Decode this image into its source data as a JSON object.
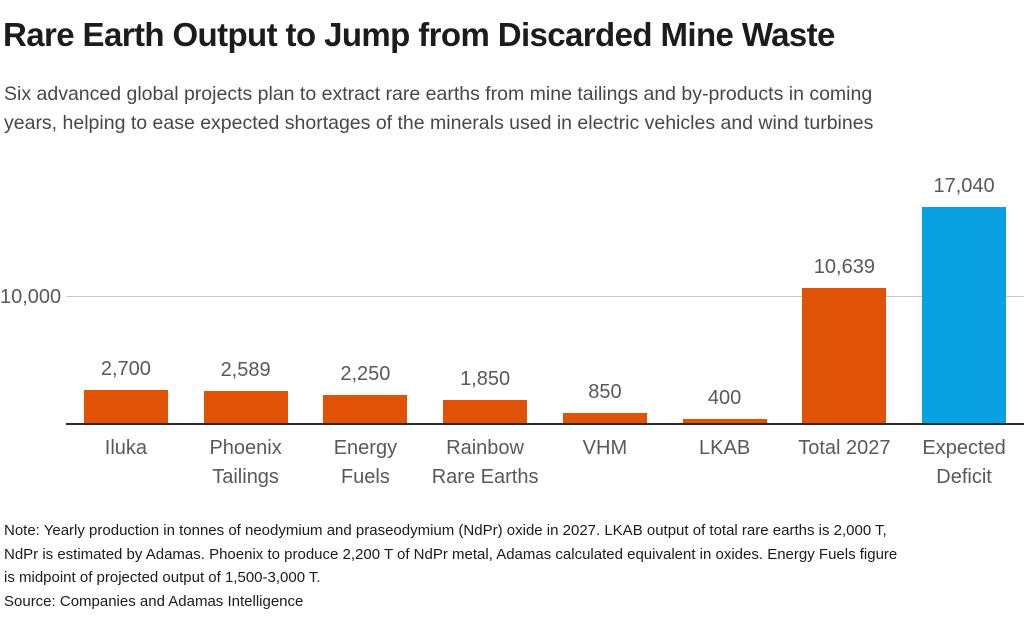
{
  "header": {
    "title": "Rare Earth Output to Jump from Discarded Mine Waste",
    "subtitle_lines": [
      "Six advanced global projects plan to extract rare earths from mine tailings and by-products in coming",
      "years, helping to ease expected shortages of the minerals used in electric vehicles and wind turbines"
    ]
  },
  "chart_data": {
    "type": "bar",
    "title": "",
    "xlabel": "",
    "ylabel": "",
    "units": "tonnes of NdPr oxide in 2027",
    "categories": [
      "Iluka",
      "Phoenix Tailings",
      "Energy Fuels",
      "Rainbow Rare Earths",
      "VHM",
      "LKAB",
      "Total 2027",
      "Expected Deficit"
    ],
    "category_lines": [
      [
        "Iluka"
      ],
      [
        "Phoenix",
        "Tailings"
      ],
      [
        "Energy",
        "Fuels"
      ],
      [
        "Rainbow",
        "Rare Earths"
      ],
      [
        "VHM"
      ],
      [
        "LKAB"
      ],
      [
        "Total 2027"
      ],
      [
        "Expected",
        "Deficit"
      ]
    ],
    "values": [
      2700,
      2589,
      2250,
      1850,
      850,
      400,
      10639,
      17040
    ],
    "value_labels": [
      "2,700",
      "2,589",
      "2,250",
      "1,850",
      "850",
      "400",
      "10,639",
      "17,040"
    ],
    "bar_colors": [
      "#e05306",
      "#e05306",
      "#e05306",
      "#e05306",
      "#e05306",
      "#e05306",
      "#e05306",
      "#09a1e2"
    ],
    "ylim": [
      0,
      21500
    ],
    "y_tick_value": 10000,
    "y_tick_label": "10,000",
    "grid": "single horizontal gridline at 10,000",
    "legend": "none"
  },
  "colors": {
    "orange": "#e05306",
    "blue": "#09a1e2",
    "gridline": "#c9c9c9",
    "axis_line": "#2a2a2a",
    "label_gray": "#595959",
    "title_black": "#1c1c1c",
    "subtitle_gray": "#474747",
    "note_black": "#1b1b1b",
    "background": "#ffffff"
  },
  "footer": {
    "note_lines": [
      "Note: Yearly production in tonnes of neodymium and praseodymium (NdPr) oxide in 2027. LKAB output of total rare earths is 2,000 T,",
      "NdPr is estimated by Adamas. Phoenix to produce 2,200 T of NdPr metal, Adamas calculated equivalent in oxides. Energy Fuels figure",
      "is midpoint of projected output of 1,500-3,000 T."
    ],
    "source": "Source: Companies and Adamas Intelligence"
  }
}
